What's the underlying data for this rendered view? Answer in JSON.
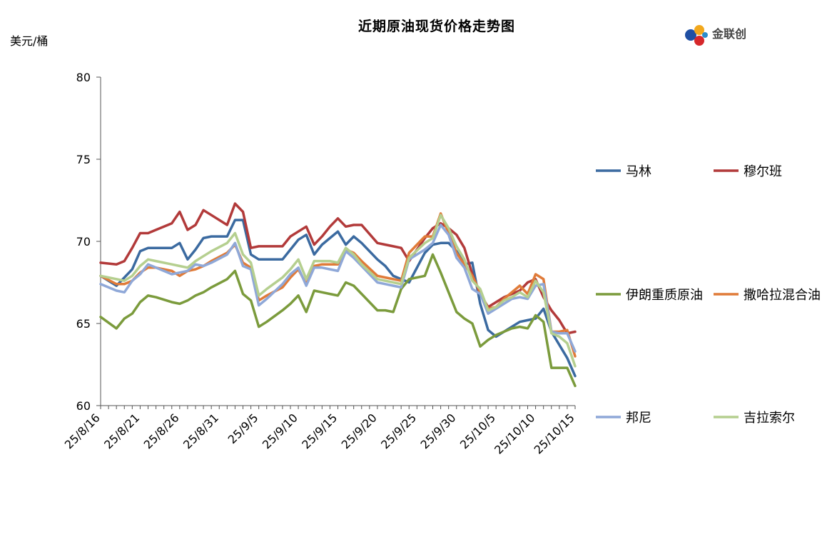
{
  "page": {
    "title": "近期原油现货价格走势图",
    "unit": "美元/桶",
    "logo_text": "金联创"
  },
  "chart_data": {
    "type": "line",
    "title": "近期原油现货价格走势图",
    "ylabel": "美元/桶",
    "xlabel": "",
    "ylim": [
      60,
      80
    ],
    "yticks": [
      60,
      65,
      70,
      75,
      80
    ],
    "grid": false,
    "legend_position": "right",
    "x_tick_labels": [
      "25/8/16",
      "25/8/21",
      "25/8/26",
      "25/8/31",
      "25/9/5",
      "25/9/10",
      "25/9/15",
      "25/9/20",
      "25/9/25",
      "25/9/30",
      "25/10/5",
      "25/10/10",
      "25/10/15"
    ],
    "x_tick_days": [
      0,
      5,
      10,
      15,
      20,
      25,
      30,
      35,
      40,
      45,
      50,
      55,
      60
    ],
    "x": [
      0,
      2,
      3,
      4,
      5,
      6,
      7,
      9,
      10,
      11,
      12,
      13,
      14,
      16,
      17,
      18,
      19,
      20,
      21,
      23,
      24,
      25,
      26,
      27,
      28,
      29,
      30,
      31,
      32,
      33,
      35,
      36,
      37,
      38,
      39,
      41,
      42,
      43,
      44,
      45,
      46,
      47,
      48,
      49,
      50,
      51,
      52,
      53,
      54,
      55,
      56,
      57,
      58,
      59,
      60
    ],
    "series": [
      {
        "name": "马林",
        "color": "#3B6AA0",
        "values": [
          67.9,
          67.3,
          67.8,
          68.3,
          69.4,
          69.6,
          69.6,
          69.6,
          69.9,
          68.9,
          69.5,
          70.2,
          70.3,
          70.3,
          71.3,
          71.3,
          69.2,
          68.9,
          68.9,
          68.9,
          69.5,
          70.1,
          70.4,
          69.2,
          69.8,
          70.2,
          70.6,
          69.8,
          70.3,
          69.9,
          68.9,
          68.5,
          67.9,
          67.7,
          67.5,
          69.3,
          69.8,
          69.9,
          69.9,
          69.4,
          68.6,
          68.7,
          66.2,
          64.6,
          64.2,
          64.5,
          64.8,
          65.1,
          65.2,
          65.3,
          65.9,
          64.5,
          63.7,
          62.9,
          61.8
        ]
      },
      {
        "name": "穆尔班",
        "color": "#B23A3A",
        "values": [
          68.7,
          68.6,
          68.8,
          69.6,
          70.5,
          70.5,
          70.7,
          71.1,
          71.8,
          70.7,
          71.0,
          71.9,
          71.6,
          71.0,
          72.3,
          71.8,
          69.6,
          69.7,
          69.7,
          69.7,
          70.3,
          70.6,
          70.9,
          69.8,
          70.3,
          70.9,
          71.4,
          70.9,
          71.0,
          71.0,
          69.9,
          69.8,
          69.7,
          69.6,
          68.8,
          70.2,
          70.8,
          71.1,
          70.8,
          70.4,
          69.6,
          68.0,
          66.8,
          66.0,
          66.3,
          66.6,
          66.8,
          67.0,
          67.5,
          67.7,
          66.6,
          65.8,
          65.2,
          64.4,
          64.5
        ]
      },
      {
        "name": "伊朗重质原油",
        "color": "#7B9B3C",
        "values": [
          65.4,
          64.7,
          65.3,
          65.6,
          66.3,
          66.7,
          66.6,
          66.3,
          66.2,
          66.4,
          66.7,
          66.9,
          67.2,
          67.7,
          68.2,
          66.8,
          66.4,
          64.8,
          65.1,
          65.8,
          66.2,
          66.7,
          65.7,
          67.0,
          66.9,
          66.8,
          66.7,
          67.5,
          67.3,
          66.8,
          65.8,
          65.8,
          65.7,
          67.1,
          67.7,
          67.9,
          69.2,
          68.1,
          66.9,
          65.7,
          65.3,
          65.0,
          63.6,
          64.0,
          64.3,
          64.5,
          64.7,
          64.8,
          64.7,
          65.5,
          65.1,
          62.3,
          62.3,
          62.3,
          61.2
        ]
      },
      {
        "name": "撒哈拉混合油",
        "color": "#E07B39",
        "values": [
          67.9,
          67.4,
          67.4,
          67.6,
          68.1,
          68.4,
          68.4,
          68.2,
          67.9,
          68.2,
          68.3,
          68.5,
          68.8,
          69.3,
          69.8,
          68.7,
          68.4,
          66.4,
          66.7,
          67.2,
          67.8,
          68.3,
          67.4,
          68.5,
          68.6,
          68.6,
          68.6,
          69.5,
          69.3,
          68.8,
          67.9,
          67.8,
          67.7,
          67.6,
          69.3,
          70.3,
          70.3,
          71.7,
          70.5,
          69.3,
          68.6,
          67.9,
          66.9,
          65.9,
          66.0,
          66.5,
          66.9,
          67.3,
          66.8,
          68.0,
          67.7,
          64.5,
          64.5,
          64.6,
          63.0
        ]
      },
      {
        "name": "邦尼",
        "color": "#8FA8D8",
        "values": [
          67.4,
          67.0,
          66.9,
          67.6,
          68.0,
          68.6,
          68.4,
          68.0,
          68.1,
          68.2,
          68.6,
          68.5,
          68.7,
          69.2,
          69.9,
          68.5,
          68.3,
          66.1,
          66.5,
          67.4,
          68.0,
          68.4,
          67.3,
          68.4,
          68.4,
          68.3,
          68.2,
          69.4,
          69.0,
          68.5,
          67.5,
          67.4,
          67.3,
          67.2,
          68.9,
          69.5,
          69.9,
          71.0,
          70.4,
          69.0,
          68.4,
          67.1,
          66.8,
          65.6,
          65.9,
          66.2,
          66.5,
          66.6,
          66.5,
          67.3,
          67.4,
          64.5,
          64.4,
          64.4,
          63.3
        ]
      },
      {
        "name": "吉拉索尔",
        "color": "#B5CF8F",
        "values": [
          67.9,
          67.7,
          67.6,
          67.9,
          68.5,
          68.9,
          68.8,
          68.6,
          68.5,
          68.4,
          68.8,
          69.1,
          69.4,
          69.9,
          70.5,
          69.2,
          68.7,
          66.7,
          67.1,
          67.8,
          68.3,
          68.9,
          67.7,
          68.8,
          68.8,
          68.8,
          68.7,
          69.6,
          69.2,
          68.6,
          67.7,
          67.6,
          67.5,
          67.4,
          69.0,
          69.9,
          70.2,
          71.6,
          70.8,
          69.7,
          68.9,
          67.6,
          67.1,
          65.8,
          66.0,
          66.4,
          66.6,
          66.9,
          66.6,
          67.6,
          66.9,
          64.4,
          64.2,
          63.8,
          62.4
        ]
      }
    ]
  }
}
